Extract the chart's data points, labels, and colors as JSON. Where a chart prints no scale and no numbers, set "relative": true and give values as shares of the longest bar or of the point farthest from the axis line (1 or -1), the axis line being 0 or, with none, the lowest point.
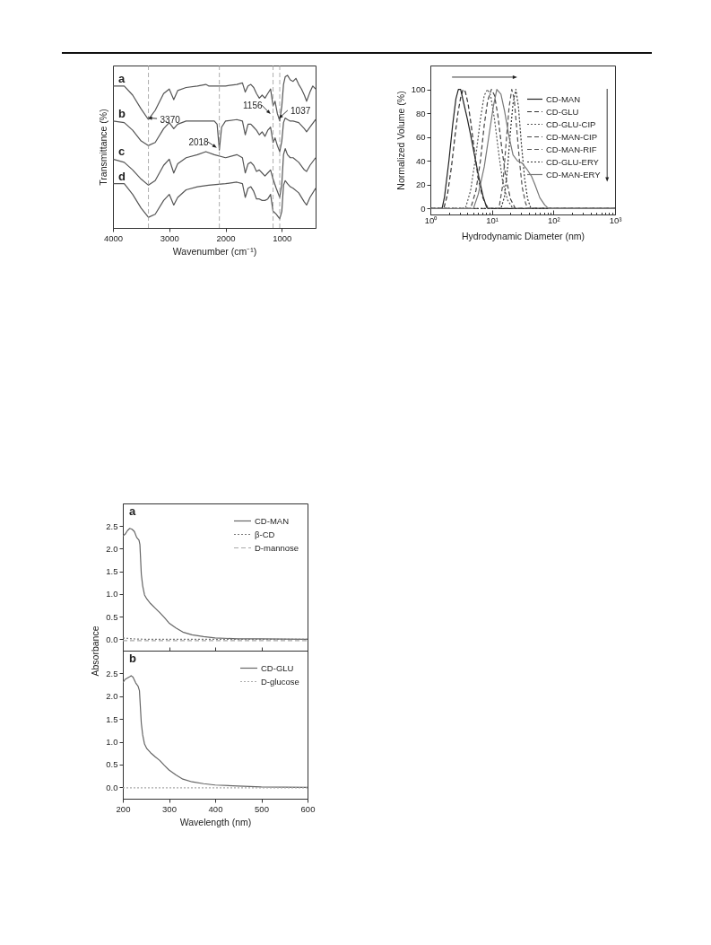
{
  "chart_data": [
    {
      "type": "line",
      "xlabel": "Wavenumber (cm⁻¹)",
      "ylabel": "Transmittance (%)",
      "relative": true,
      "xlim": [
        4000,
        400
      ],
      "xticks": [
        4000,
        3000,
        2000,
        1000
      ],
      "legend": false,
      "series": [
        {
          "name": "a",
          "color": "#555555",
          "x": [
            4000,
            3800,
            3650,
            3500,
            3370,
            3250,
            3100,
            3000,
            2920,
            2850,
            2700,
            2500,
            2350,
            2300,
            2200,
            2000,
            1800,
            1700,
            1650,
            1600,
            1550,
            1500,
            1450,
            1400,
            1350,
            1300,
            1250,
            1200,
            1156,
            1120,
            1080,
            1037,
            1000,
            970,
            940,
            900,
            850,
            800,
            750,
            700,
            650,
            600,
            560,
            500,
            450,
            400
          ],
          "values": [
            0.93,
            0.93,
            0.87,
            0.78,
            0.71,
            0.77,
            0.88,
            0.91,
            0.84,
            0.9,
            0.92,
            0.93,
            0.94,
            0.93,
            0.93,
            0.93,
            0.94,
            0.95,
            0.89,
            0.93,
            0.94,
            0.92,
            0.88,
            0.85,
            0.87,
            0.85,
            0.88,
            0.91,
            0.8,
            0.83,
            0.75,
            0.7,
            0.8,
            0.94,
            0.99,
            1.0,
            0.97,
            0.96,
            0.98,
            0.94,
            0.91,
            0.87,
            0.83,
            0.89,
            0.93,
            0.91
          ]
        },
        {
          "name": "b",
          "color": "#555555",
          "x": [
            4000,
            3800,
            3650,
            3500,
            3370,
            3250,
            3100,
            3000,
            2920,
            2850,
            2700,
            2500,
            2300,
            2200,
            2150,
            2110,
            2070,
            2000,
            1800,
            1700,
            1650,
            1600,
            1550,
            1500,
            1450,
            1400,
            1350,
            1300,
            1250,
            1200,
            1156,
            1120,
            1080,
            1037,
            1000,
            970,
            940,
            900,
            850,
            800,
            700,
            600,
            560,
            500,
            400
          ],
          "values": [
            0.7,
            0.69,
            0.64,
            0.57,
            0.54,
            0.56,
            0.65,
            0.69,
            0.65,
            0.68,
            0.7,
            0.7,
            0.7,
            0.7,
            0.68,
            0.51,
            0.66,
            0.7,
            0.71,
            0.7,
            0.61,
            0.68,
            0.68,
            0.66,
            0.64,
            0.61,
            0.63,
            0.6,
            0.64,
            0.66,
            0.56,
            0.59,
            0.54,
            0.5,
            0.57,
            0.69,
            0.72,
            0.71,
            0.7,
            0.7,
            0.69,
            0.65,
            0.63,
            0.66,
            0.71
          ]
        },
        {
          "name": "c",
          "color": "#555555",
          "x": [
            4000,
            3800,
            3650,
            3500,
            3370,
            3250,
            3100,
            3000,
            2920,
            2850,
            2700,
            2500,
            2350,
            2200,
            2000,
            1800,
            1700,
            1650,
            1600,
            1550,
            1500,
            1450,
            1400,
            1350,
            1300,
            1250,
            1200,
            1156,
            1100,
            1037,
            1000,
            970,
            940,
            900,
            850,
            800,
            700,
            600,
            560,
            500,
            400
          ],
          "values": [
            0.45,
            0.43,
            0.38,
            0.32,
            0.28,
            0.31,
            0.41,
            0.45,
            0.36,
            0.42,
            0.46,
            0.48,
            0.5,
            0.48,
            0.46,
            0.48,
            0.46,
            0.36,
            0.42,
            0.43,
            0.41,
            0.37,
            0.38,
            0.36,
            0.34,
            0.36,
            0.38,
            0.32,
            0.26,
            0.2,
            0.29,
            0.48,
            0.52,
            0.48,
            0.46,
            0.46,
            0.43,
            0.38,
            0.37,
            0.41,
            0.46
          ]
        },
        {
          "name": "d",
          "color": "#555555",
          "x": [
            4000,
            3800,
            3650,
            3500,
            3370,
            3250,
            3100,
            3000,
            2920,
            2850,
            2700,
            2500,
            2300,
            2000,
            1800,
            1700,
            1650,
            1600,
            1550,
            1500,
            1450,
            1400,
            1350,
            1300,
            1250,
            1200,
            1156,
            1100,
            1037,
            1000,
            970,
            940,
            900,
            850,
            800,
            700,
            600,
            560,
            500,
            400
          ],
          "values": [
            0.29,
            0.29,
            0.22,
            0.13,
            0.07,
            0.09,
            0.18,
            0.22,
            0.15,
            0.2,
            0.25,
            0.27,
            0.28,
            0.29,
            0.3,
            0.29,
            0.2,
            0.26,
            0.27,
            0.24,
            0.19,
            0.19,
            0.18,
            0.18,
            0.19,
            0.22,
            0.11,
            0.09,
            0.06,
            0.11,
            0.28,
            0.31,
            0.29,
            0.27,
            0.26,
            0.23,
            0.17,
            0.15,
            0.2,
            0.26
          ]
        }
      ],
      "ref_lines": [
        {
          "axis": "x",
          "value": 3370,
          "color": "#999999",
          "line_style": "dashed"
        },
        {
          "axis": "x",
          "value": 2110,
          "color": "#999999",
          "line_style": "dashed"
        },
        {
          "axis": "x",
          "value": 1156,
          "color": "#999999",
          "line_style": "dashed"
        },
        {
          "axis": "x",
          "value": 1037,
          "color": "#999999",
          "line_style": "dashed"
        }
      ],
      "annotations": [
        {
          "text": "3370",
          "x": 3370,
          "y": 0.71
        },
        {
          "text": "2018",
          "x": 2110,
          "y": 0.51
        },
        {
          "text": "1156",
          "x": 1156,
          "y": 0.73
        },
        {
          "text": "1037",
          "x": 1037,
          "y": 0.7
        }
      ]
    },
    {
      "type": "line",
      "xlabel": "Hydrodynamic Diameter (nm)",
      "ylabel": "Normalized Volume (%)",
      "log": "x",
      "xlim": [
        1,
        1000
      ],
      "xticks": [
        {
          "value": 1,
          "label": "10⁰"
        },
        {
          "value": 2,
          "label": null
        },
        {
          "value": 3,
          "label": null
        },
        {
          "value": 4,
          "label": null
        },
        {
          "value": 5,
          "label": null
        },
        {
          "value": 6,
          "label": null
        },
        {
          "value": 7,
          "label": null
        },
        {
          "value": 8,
          "label": null
        },
        {
          "value": 9,
          "label": null
        },
        {
          "value": 10,
          "label": "10¹"
        },
        {
          "value": 20,
          "label": null
        },
        {
          "value": 30,
          "label": null
        },
        {
          "value": 40,
          "label": null
        },
        {
          "value": 50,
          "label": null
        },
        {
          "value": 60,
          "label": null
        },
        {
          "value": 70,
          "label": null
        },
        {
          "value": 80,
          "label": null
        },
        {
          "value": 90,
          "label": null
        },
        {
          "value": 100,
          "label": "10²"
        },
        {
          "value": 200,
          "label": null
        },
        {
          "value": 300,
          "label": null
        },
        {
          "value": 400,
          "label": null
        },
        {
          "value": 500,
          "label": null
        },
        {
          "value": 600,
          "label": null
        },
        {
          "value": 700,
          "label": null
        },
        {
          "value": 800,
          "label": null
        },
        {
          "value": 900,
          "label": null
        },
        {
          "value": 1000,
          "label": "10³"
        }
      ],
      "ylim": [
        -5,
        120
      ],
      "yticks": [
        0,
        20,
        40,
        60,
        80,
        100
      ],
      "legend": "top right",
      "series": [
        {
          "name": "CD-MAN",
          "color": "#222222",
          "line_style": "solid",
          "x": [
            1,
            1.55,
            1.7,
            2,
            2.3,
            2.6,
            2.85,
            3.1,
            3.5,
            4,
            4.5,
            5.2,
            6.2,
            7.2,
            8.2,
            8.6,
            1000
          ],
          "values": [
            0,
            0,
            10,
            40,
            70,
            92,
            100,
            100,
            88,
            75,
            62,
            45,
            25,
            10,
            1,
            0,
            0
          ]
        },
        {
          "name": "CD-GLU",
          "color": "#333333",
          "line_style": "dashed",
          "x": [
            1,
            1.65,
            1.9,
            2.2,
            2.5,
            2.8,
            3.1,
            3.4,
            3.7,
            4.1,
            4.6,
            5.2,
            6,
            7,
            8,
            9,
            1000
          ],
          "values": [
            0,
            0,
            12,
            35,
            60,
            80,
            93,
            100,
            98,
            88,
            70,
            48,
            25,
            10,
            3,
            0,
            0
          ]
        },
        {
          "name": "CD-GLU-CIP",
          "color": "#555555",
          "line_style": "dotted",
          "x": [
            1,
            3.7,
            4.5,
            5.5,
            6.5,
            7.5,
            8.5,
            9.5,
            11,
            13,
            15,
            18,
            22,
            1000
          ],
          "values": [
            0,
            0,
            15,
            45,
            75,
            95,
            100,
            95,
            75,
            45,
            22,
            7,
            0,
            0
          ]
        },
        {
          "name": "CD-MAN-CIP",
          "color": "#444444",
          "line_style": "dashed",
          "x": [
            1,
            4.5,
            5.5,
            6.5,
            7.5,
            8.5,
            9.8,
            11,
            12.5,
            14.5,
            17,
            20,
            24,
            1000
          ],
          "values": [
            0,
            0,
            15,
            40,
            70,
            90,
            100,
            95,
            78,
            50,
            25,
            8,
            0,
            0
          ]
        },
        {
          "name": "CD-MAN-RIF",
          "color": "#555555",
          "line_style": "dashed",
          "x": [
            1,
            13,
            15,
            17,
            19,
            21,
            23,
            25,
            28,
            31,
            35,
            38,
            1000
          ],
          "values": [
            0,
            0,
            20,
            55,
            85,
            100,
            92,
            70,
            40,
            18,
            5,
            0,
            0
          ]
        },
        {
          "name": "CD-GLU-ERY",
          "color": "#333333",
          "line_style": "dotted",
          "x": [
            1,
            14,
            16,
            18,
            20,
            22,
            24.5,
            27,
            30,
            34,
            38,
            43,
            1000
          ],
          "values": [
            0,
            0,
            10,
            35,
            65,
            88,
            100,
            85,
            55,
            25,
            8,
            0,
            0
          ]
        },
        {
          "name": "CD-MAN-ERY",
          "color": "#777777",
          "line_style": "solid",
          "x": [
            1,
            5,
            6,
            7.5,
            9,
            10.5,
            12,
            14,
            16,
            19,
            22,
            26,
            31,
            37,
            44,
            50,
            60,
            72,
            83,
            1000
          ],
          "values": [
            0,
            0,
            12,
            35,
            62,
            85,
            100,
            96,
            82,
            60,
            45,
            40,
            38,
            33,
            27,
            20,
            9,
            3,
            0,
            0
          ]
        }
      ]
    },
    {
      "type": "line",
      "ylabel": "Absorbance",
      "xlim": [
        200,
        600
      ],
      "xticks": [
        200,
        300,
        400,
        500,
        600
      ],
      "ylim": [
        -0.25,
        3.0
      ],
      "yticks": [
        {
          "value": 0,
          "label": "0.0"
        },
        0.5,
        {
          "value": 1,
          "label": "1.0"
        },
        1.5,
        {
          "value": 2,
          "label": "2.0"
        },
        2.5
      ],
      "tick_labels": "y",
      "legend": "top right",
      "annotations": [
        "a"
      ],
      "series": [
        {
          "name": "CD-MAN",
          "color": "#666666",
          "line_style": "solid",
          "x": [
            200,
            205,
            210,
            215,
            220,
            225,
            230,
            235,
            237,
            240,
            243,
            247,
            252,
            260,
            270,
            280,
            290,
            300,
            315,
            330,
            350,
            375,
            400,
            450,
            500,
            600
          ],
          "values": [
            2.28,
            2.32,
            2.4,
            2.45,
            2.43,
            2.38,
            2.25,
            2.19,
            2.09,
            1.44,
            1.18,
            0.98,
            0.89,
            0.79,
            0.69,
            0.59,
            0.48,
            0.36,
            0.25,
            0.16,
            0.1,
            0.06,
            0.03,
            0.01,
            0.01,
            0.0
          ]
        },
        {
          "name": "β-CD",
          "color": "#777777",
          "line_style": "dotted",
          "x": [
            200,
            220,
            250,
            600
          ],
          "values": [
            0.03,
            0.01,
            0.0,
            0.0
          ]
        },
        {
          "name": "D-mannose",
          "color": "#aaaaaa",
          "line_style": "dashed",
          "x": [
            200,
            600
          ],
          "values": [
            -0.03,
            -0.03
          ]
        }
      ]
    },
    {
      "type": "line",
      "xlabel": "Wavelength (nm)",
      "xlim": [
        200,
        600
      ],
      "xticks": [
        200,
        300,
        400,
        500,
        600
      ],
      "ylim": [
        -0.25,
        3.0
      ],
      "yticks": [
        {
          "value": 0,
          "label": "0.0"
        },
        0.5,
        {
          "value": 1,
          "label": "1.0"
        },
        1.5,
        {
          "value": 2,
          "label": "2.0"
        },
        2.5
      ],
      "legend": "top right",
      "annotations": [
        "b"
      ],
      "series": [
        {
          "name": "CD-GLU",
          "color": "#666666",
          "line_style": "solid",
          "x": [
            200,
            205,
            210,
            215,
            218,
            222,
            228,
            233,
            236,
            240,
            243,
            247,
            252,
            260,
            270,
            280,
            290,
            300,
            315,
            330,
            350,
            375,
            400,
            450,
            500,
            600
          ],
          "values": [
            2.3,
            2.37,
            2.4,
            2.43,
            2.45,
            2.42,
            2.29,
            2.22,
            2.12,
            1.41,
            1.15,
            0.95,
            0.85,
            0.76,
            0.67,
            0.59,
            0.48,
            0.38,
            0.27,
            0.18,
            0.12,
            0.08,
            0.05,
            0.03,
            0.01,
            0.0
          ]
        },
        {
          "name": "D-glucose",
          "color": "#aaaaaa",
          "line_style": "dotted",
          "x": [
            200,
            600
          ],
          "values": [
            -0.01,
            -0.01
          ]
        }
      ]
    }
  ]
}
